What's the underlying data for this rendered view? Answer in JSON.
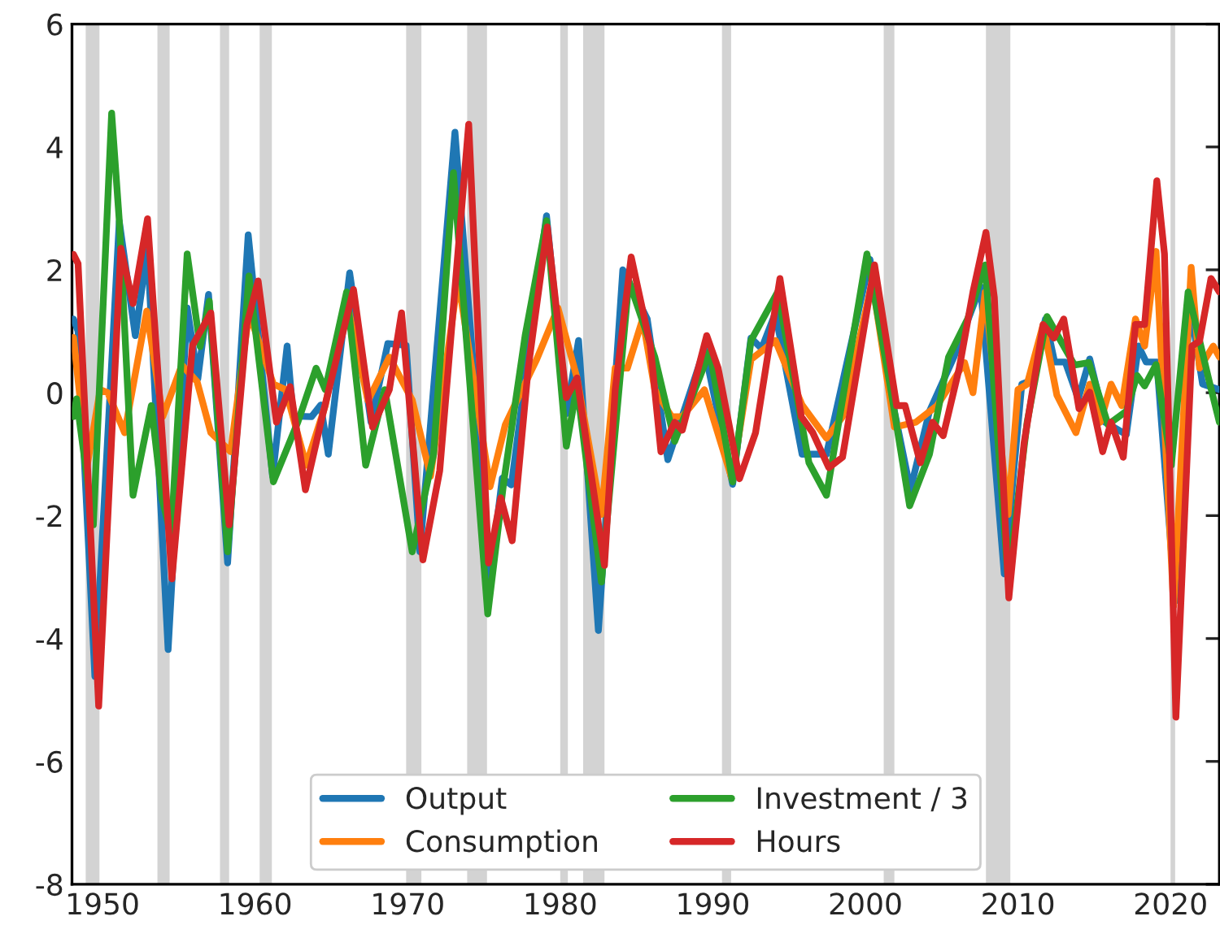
{
  "chart_data": {
    "type": "line",
    "xlim": [
      1948,
      2023.2
    ],
    "ylim": [
      -8,
      6
    ],
    "xticks": [
      1950,
      1960,
      1970,
      1980,
      1990,
      2000,
      2010,
      2020
    ],
    "yticks": [
      -8,
      -6,
      -4,
      -2,
      0,
      2,
      4,
      6
    ],
    "grid": false,
    "legend": "bottom",
    "line_style": "solid",
    "marker": "none",
    "bands": [
      {
        "axis": "x",
        "from": 1948.9,
        "to": 1949.8,
        "color": "#d3d3d3"
      },
      {
        "axis": "x",
        "from": 1953.6,
        "to": 1954.4,
        "color": "#d3d3d3"
      },
      {
        "axis": "x",
        "from": 1957.7,
        "to": 1958.3,
        "color": "#d3d3d3"
      },
      {
        "axis": "x",
        "from": 1960.3,
        "to": 1961.1,
        "color": "#d3d3d3"
      },
      {
        "axis": "x",
        "from": 1969.9,
        "to": 1970.9,
        "color": "#d3d3d3"
      },
      {
        "axis": "x",
        "from": 1973.9,
        "to": 1975.2,
        "color": "#d3d3d3"
      },
      {
        "axis": "x",
        "from": 1980.0,
        "to": 1980.5,
        "color": "#d3d3d3"
      },
      {
        "axis": "x",
        "from": 1981.5,
        "to": 1982.9,
        "color": "#d3d3d3"
      },
      {
        "axis": "x",
        "from": 1990.6,
        "to": 1991.2,
        "color": "#d3d3d3"
      },
      {
        "axis": "x",
        "from": 2001.2,
        "to": 2001.9,
        "color": "#d3d3d3"
      },
      {
        "axis": "x",
        "from": 2007.9,
        "to": 2009.5,
        "color": "#d3d3d3"
      },
      {
        "axis": "x",
        "from": 2020.0,
        "to": 2020.3,
        "color": "#d3d3d3"
      }
    ],
    "series": [
      {
        "name": "Output",
        "color": "#1f77b4",
        "x": [
          1948.1,
          1948.4,
          1949.5,
          1951.1,
          1952.15,
          1952.95,
          1954.3,
          1955.55,
          1956.25,
          1956.95,
          1958.2,
          1959.55,
          1961.15,
          1962.1,
          1962.5,
          1963.7,
          1964.3,
          1964.8,
          1966.2,
          1967.6,
          1968.7,
          1969.9,
          1970.8,
          1973.1,
          1975.4,
          1976.2,
          1976.8,
          1979.1,
          1980.4,
          1981.2,
          1982.5,
          1984.1,
          1985.7,
          1987.05,
          1989.45,
          1991.3,
          1992.5,
          1993.2,
          1994.1,
          1995.85,
          1997.45,
          2000.3,
          2001.9,
          2002.95,
          2004.2,
          2005.8,
          2007.55,
          2009.1,
          2010.25,
          2010.85,
          2011.8,
          2012.4,
          2013.1,
          2013.95,
          2014.7,
          2015.7,
          2017.1,
          2017.9,
          2018.4,
          2019.1,
          2020.3,
          2021.25,
          2022.1,
          2023.2
        ],
        "values": [
          1.2,
          1.0,
          -4.62,
          2.79,
          0.93,
          2.35,
          -4.18,
          1.38,
          0.23,
          1.6,
          -2.77,
          2.57,
          -1.36,
          0.76,
          -0.38,
          -0.39,
          -0.2,
          -1.0,
          1.95,
          -0.48,
          0.8,
          0.77,
          -2.59,
          4.24,
          -3.03,
          -1.39,
          -1.5,
          2.88,
          -0.34,
          0.85,
          -3.87,
          2.0,
          1.2,
          -1.09,
          0.71,
          -1.49,
          0.89,
          0.72,
          1.3,
          -1.0,
          -1.0,
          2.17,
          -0.3,
          -1.58,
          -0.3,
          0.58,
          1.73,
          -2.95,
          0.14,
          0.2,
          1.2,
          0.5,
          0.5,
          -0.1,
          0.55,
          -0.48,
          -0.68,
          0.76,
          0.5,
          0.5,
          -3.39,
          1.46,
          0.14,
          0.05
        ]
      },
      {
        "name": "Consumption",
        "color": "#ff7f0e",
        "x": [
          1948.1,
          1949.0,
          1949.85,
          1950.35,
          1951.45,
          1952.9,
          1953.95,
          1955.2,
          1956.2,
          1957.1,
          1958.4,
          1959.6,
          1961.2,
          1962.0,
          1963.35,
          1964.6,
          1966.0,
          1967.4,
          1968.8,
          1970.3,
          1971.5,
          1973.3,
          1975.4,
          1976.4,
          1978.45,
          1979.85,
          1981.1,
          1982.7,
          1983.6,
          1984.4,
          1985.4,
          1986.2,
          1987.3,
          1988.0,
          1989.45,
          1991.25,
          1992.5,
          1994.1,
          1995.85,
          1997.45,
          1998.5,
          2000.45,
          2001.9,
          2003.3,
          2004.7,
          2006.5,
          2007.05,
          2007.85,
          2009.35,
          2010.0,
          2010.6,
          2011.65,
          2012.55,
          2013.8,
          2014.7,
          2015.4,
          2016.1,
          2016.8,
          2017.7,
          2018.3,
          2019.05,
          2020.2,
          2021.35,
          2021.9,
          2022.8,
          2023.2
        ],
        "values": [
          0.9,
          -1.18,
          0.05,
          0.0,
          -0.65,
          1.33,
          -0.39,
          0.45,
          0.18,
          -0.65,
          -0.96,
          1.3,
          0.14,
          0.05,
          -1.18,
          -0.21,
          1.49,
          -0.13,
          0.58,
          -0.12,
          -1.36,
          1.86,
          -1.53,
          -0.52,
          0.54,
          1.38,
          0.24,
          -1.98,
          0.4,
          0.4,
          1.2,
          0.05,
          -0.39,
          -0.39,
          0.05,
          -1.4,
          0.54,
          0.85,
          -0.2,
          -0.74,
          -0.39,
          1.82,
          -0.56,
          -0.48,
          -0.21,
          0.49,
          0.0,
          1.64,
          -1.98,
          0.05,
          0.14,
          1.11,
          -0.04,
          -0.65,
          0.14,
          -0.48,
          0.14,
          -0.21,
          1.2,
          0.76,
          2.3,
          -3.47,
          2.04,
          0.4,
          0.76,
          0.58
        ]
      },
      {
        "name": "Investment / 3",
        "color": "#2ca02c",
        "x": [
          1948.1,
          1948.3,
          1949.4,
          1950.6,
          1951.1,
          1952.0,
          1953.2,
          1953.9,
          1954.5,
          1955.55,
          1956.4,
          1957.0,
          1958.2,
          1959.6,
          1961.2,
          1962.8,
          1964.0,
          1964.6,
          1966.0,
          1967.25,
          1968.5,
          1970.3,
          1971.7,
          1973.0,
          1975.25,
          1976.3,
          1977.7,
          1979.1,
          1980.4,
          1981.1,
          1982.7,
          1984.5,
          1986.2,
          1987.5,
          1989.8,
          1991.3,
          1992.5,
          1994.25,
          1996.3,
          1997.45,
          2000.1,
          2001.7,
          2002.9,
          2004.2,
          2005.45,
          2006.7,
          2007.85,
          2009.35,
          2010.6,
          2011.9,
          2013.7,
          2014.65,
          2015.9,
          2017.1,
          2017.8,
          2018.3,
          2019.05,
          2020.05,
          2021.15,
          2022.5,
          2023.2
        ],
        "values": [
          -0.39,
          -0.1,
          -2.15,
          4.55,
          2.8,
          -1.67,
          -0.21,
          -1.72,
          -2.33,
          2.26,
          0.75,
          1.49,
          -2.59,
          1.9,
          -1.45,
          -0.48,
          0.4,
          0.05,
          1.64,
          -1.18,
          0.05,
          -2.59,
          -1.0,
          3.58,
          -3.6,
          -1.45,
          0.93,
          2.8,
          -0.87,
          0.1,
          -3.08,
          1.82,
          0.58,
          -0.79,
          0.67,
          -1.45,
          0.85,
          1.64,
          -1.14,
          -1.67,
          2.26,
          0.0,
          -1.84,
          -1.0,
          0.58,
          1.2,
          2.08,
          -3.03,
          -0.48,
          1.24,
          0.45,
          0.49,
          -0.52,
          -0.3,
          0.28,
          0.11,
          0.46,
          -1.18,
          1.64,
          0.22,
          -0.48
        ]
      },
      {
        "name": "Hours",
        "color": "#d62728",
        "x": [
          1948.1,
          1948.4,
          1949.75,
          1951.2,
          1952.0,
          1952.95,
          1954.55,
          1955.9,
          1957.1,
          1958.3,
          1959.45,
          1960.2,
          1961.4,
          1962.3,
          1963.3,
          1964.4,
          1966.45,
          1967.7,
          1968.8,
          1969.6,
          1971.0,
          1972.1,
          1974.0,
          1975.3,
          1976.1,
          1976.85,
          1977.9,
          1979.15,
          1980.4,
          1981.1,
          1982.9,
          1983.6,
          1984.65,
          1985.9,
          1986.6,
          1987.5,
          1988.0,
          1989.6,
          1990.35,
          1991.75,
          1992.8,
          1994.4,
          1995.8,
          1996.55,
          1997.6,
          1998.5,
          2000.6,
          2002.05,
          2002.6,
          2003.6,
          2004.4,
          2005.1,
          2006.15,
          2007.05,
          2007.9,
          2008.45,
          2009.4,
          2010.4,
          2011.65,
          2012.35,
          2013.0,
          2014.0,
          2014.7,
          2015.55,
          2016.1,
          2016.9,
          2017.7,
          2018.3,
          2019.1,
          2019.6,
          2020.35,
          2021.4,
          2021.9,
          2022.65,
          2023.2
        ],
        "values": [
          2.25,
          2.1,
          -5.1,
          2.35,
          1.45,
          2.83,
          -3.03,
          0.77,
          1.3,
          -2.15,
          1.1,
          1.82,
          -0.48,
          0.1,
          -1.58,
          -0.39,
          1.68,
          -0.56,
          0.05,
          1.3,
          -2.72,
          -1.27,
          4.37,
          -2.77,
          -1.71,
          -2.41,
          0.4,
          2.7,
          -0.08,
          0.24,
          -2.81,
          0.05,
          2.21,
          0.77,
          -0.96,
          -0.48,
          -0.61,
          0.93,
          0.4,
          -1.4,
          -0.65,
          1.86,
          -0.39,
          -0.65,
          -1.22,
          -1.05,
          2.08,
          -0.21,
          -0.21,
          -1.14,
          -0.48,
          -0.7,
          0.4,
          1.64,
          2.61,
          1.55,
          -3.34,
          -0.82,
          1.11,
          0.89,
          1.2,
          -0.26,
          0.01,
          -0.96,
          -0.48,
          -1.05,
          1.11,
          1.11,
          3.45,
          2.26,
          -5.28,
          0.76,
          0.84,
          1.86,
          1.64
        ]
      }
    ]
  }
}
